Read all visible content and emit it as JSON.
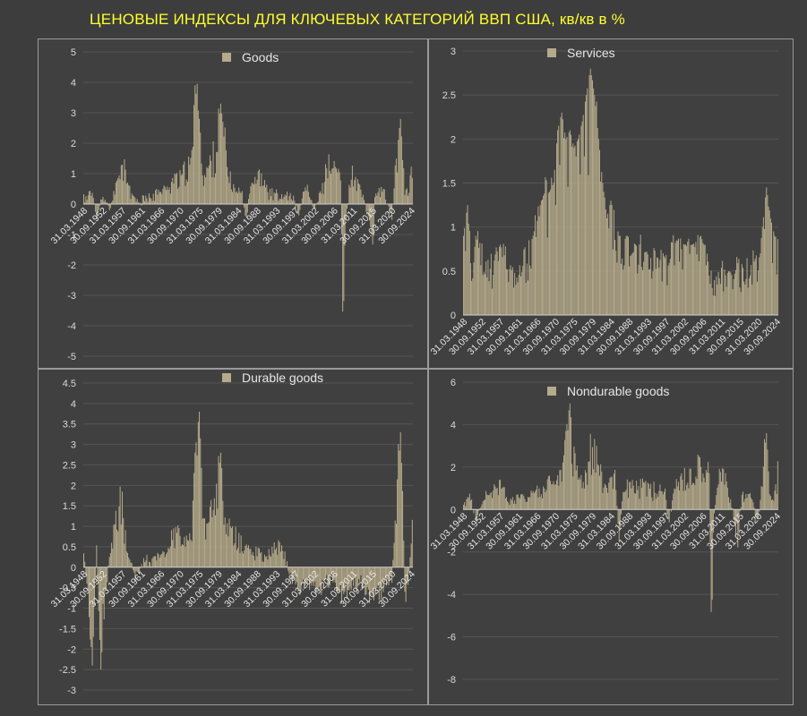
{
  "title": "ЦЕНОВЫЕ ИНДЕКСЫ ДЛЯ КЛЮЧЕВЫХ КАТЕГОРИЙ ВВП США, кв/кв в %",
  "colors": {
    "background": "#3d3d3d",
    "panel": "#404040",
    "bar": "#b5aa8a",
    "title": "#ffff2e",
    "text": "#d9d9d9",
    "border": "#9a9a9a"
  },
  "chart_data": [
    {
      "type": "bar",
      "legend": "Goods",
      "ylim": [
        -5,
        5
      ],
      "yticks": [
        "5",
        "4",
        "3",
        "2",
        "1",
        "0",
        "-1",
        "-2",
        "-3",
        "-4",
        "-5"
      ],
      "xticks": [
        "31.03.1948",
        "30.09.1952",
        "31.03.1957",
        "30.09.1961",
        "31.03.1966",
        "30.09.1970",
        "31.03.1975",
        "30.09.1979",
        "31.03.1984",
        "30.09.1988",
        "31.03.1993",
        "30.09.1997",
        "31.03.2002",
        "30.09.2006",
        "31.03.2011",
        "30.09.2015",
        "31.03.2020",
        "30.09.2024"
      ],
      "x_start": 1948.0,
      "x_end": 2025.0,
      "anchors": [
        [
          1948,
          0.2
        ],
        [
          1950,
          0.4
        ],
        [
          1951,
          -0.6
        ],
        [
          1952,
          0.3
        ],
        [
          1954,
          -0.2
        ],
        [
          1956,
          0.9
        ],
        [
          1957,
          1.5
        ],
        [
          1959,
          0.3
        ],
        [
          1961,
          0.1
        ],
        [
          1963,
          0.2
        ],
        [
          1965,
          0.4
        ],
        [
          1967,
          0.5
        ],
        [
          1969,
          0.9
        ],
        [
          1971,
          1.0
        ],
        [
          1973,
          1.3
        ],
        [
          1974,
          3.9
        ],
        [
          1975,
          2.8
        ],
        [
          1976,
          1.0
        ],
        [
          1977,
          1.2
        ],
        [
          1979,
          2.0
        ],
        [
          1980,
          3.3
        ],
        [
          1981,
          2.0
        ],
        [
          1982,
          0.8
        ],
        [
          1983,
          0.6
        ],
        [
          1985,
          0.4
        ],
        [
          1986,
          -0.7
        ],
        [
          1987,
          0.8
        ],
        [
          1989,
          1.0
        ],
        [
          1991,
          0.5
        ],
        [
          1993,
          0.3
        ],
        [
          1995,
          0.3
        ],
        [
          1997,
          0.2
        ],
        [
          1998,
          -0.4
        ],
        [
          2000,
          0.6
        ],
        [
          2002,
          -0.2
        ],
        [
          2004,
          0.8
        ],
        [
          2005,
          1.4
        ],
        [
          2006,
          1.2
        ],
        [
          2008,
          1.3
        ],
        [
          2008.6,
          -4.5
        ],
        [
          2009,
          -1.0
        ],
        [
          2010,
          0.6
        ],
        [
          2011,
          1.1
        ],
        [
          2013,
          0.3
        ],
        [
          2015,
          -0.8
        ],
        [
          2015.5,
          -2.0
        ],
        [
          2016,
          0.3
        ],
        [
          2018,
          0.5
        ],
        [
          2020,
          -0.5
        ],
        [
          2021,
          1.6
        ],
        [
          2022,
          2.8
        ],
        [
          2023,
          0.5
        ],
        [
          2024,
          0.4
        ],
        [
          2025,
          2.0
        ]
      ]
    },
    {
      "type": "bar",
      "legend": "Services",
      "ylim": [
        0,
        3
      ],
      "yticks": [
        "3",
        "2.5",
        "2",
        "1.5",
        "1",
        "0.5",
        "0"
      ],
      "xticks": [
        "31.03.1948",
        "30.09.1952",
        "31.03.1957",
        "30.09.1961",
        "31.03.1966",
        "30.09.1970",
        "31.03.1975",
        "30.09.1979",
        "31.03.1984",
        "30.09.1988",
        "31.03.1993",
        "30.09.1997",
        "31.03.2002",
        "30.09.2006",
        "31.03.2011",
        "30.09.2015",
        "31.03.2020",
        "30.09.2024"
      ],
      "x_start": 1948.0,
      "x_end": 2025.0,
      "anchors": [
        [
          1948,
          0.9
        ],
        [
          1949,
          1.25
        ],
        [
          1950,
          0.4
        ],
        [
          1951,
          0.9
        ],
        [
          1953,
          0.55
        ],
        [
          1955,
          0.6
        ],
        [
          1957,
          0.8
        ],
        [
          1959,
          0.55
        ],
        [
          1961,
          0.5
        ],
        [
          1963,
          0.6
        ],
        [
          1965,
          0.9
        ],
        [
          1967,
          1.3
        ],
        [
          1969,
          1.4
        ],
        [
          1970,
          1.5
        ],
        [
          1971,
          2.1
        ],
        [
          1972,
          2.3
        ],
        [
          1973,
          2.0
        ],
        [
          1974,
          2.1
        ],
        [
          1975,
          1.9
        ],
        [
          1976,
          2.0
        ],
        [
          1977,
          2.2
        ],
        [
          1978,
          2.5
        ],
        [
          1979,
          2.8
        ],
        [
          1980,
          2.5
        ],
        [
          1981,
          2.0
        ],
        [
          1982,
          1.5
        ],
        [
          1983,
          1.1
        ],
        [
          1984,
          1.3
        ],
        [
          1986,
          0.9
        ],
        [
          1988,
          0.9
        ],
        [
          1990,
          0.8
        ],
        [
          1992,
          0.7
        ],
        [
          1994,
          0.7
        ],
        [
          1996,
          0.6
        ],
        [
          1998,
          0.6
        ],
        [
          2000,
          0.85
        ],
        [
          2002,
          0.8
        ],
        [
          2004,
          0.8
        ],
        [
          2006,
          0.9
        ],
        [
          2007,
          0.75
        ],
        [
          2008,
          0.7
        ],
        [
          2009,
          0.3
        ],
        [
          2010,
          0.45
        ],
        [
          2012,
          0.5
        ],
        [
          2014,
          0.55
        ],
        [
          2016,
          0.5
        ],
        [
          2018,
          0.55
        ],
        [
          2019,
          0.6
        ],
        [
          2020,
          0.5
        ],
        [
          2021,
          1.0
        ],
        [
          2022,
          1.45
        ],
        [
          2023,
          1.1
        ],
        [
          2024,
          0.9
        ],
        [
          2025,
          0.85
        ]
      ]
    },
    {
      "type": "bar",
      "legend": "Durable goods",
      "ylim": [
        -3,
        4.5
      ],
      "yticks": [
        "4.5",
        "4",
        "3.5",
        "3",
        "2.5",
        "2",
        "1.5",
        "1",
        "0.5",
        "0",
        "-0.5",
        "-1",
        "-1.5",
        "-2",
        "-2.5",
        "-3"
      ],
      "xticks": [
        "31.03.1948",
        "30.09.1952",
        "31.03.1957",
        "30.09.1961",
        "31.03.1966",
        "30.09.1970",
        "31.03.1975",
        "30.09.1979",
        "31.03.1984",
        "30.09.1988",
        "31.03.1993",
        "30.09.1997",
        "31.03.2002",
        "30.09.2006",
        "31.03.2011",
        "30.09.2015",
        "31.03.2020",
        "30.09.2024"
      ],
      "x_start": 1948.0,
      "x_end": 2025.0,
      "anchors": [
        [
          1948,
          0.3
        ],
        [
          1949,
          -0.6
        ],
        [
          1950,
          -2.4
        ],
        [
          1951,
          0.4
        ],
        [
          1952,
          -2.5
        ],
        [
          1953,
          -0.8
        ],
        [
          1954,
          0.3
        ],
        [
          1955,
          1.0
        ],
        [
          1956,
          1.4
        ],
        [
          1957,
          1.6
        ],
        [
          1958,
          0.5
        ],
        [
          1960,
          -0.3
        ],
        [
          1962,
          0.2
        ],
        [
          1964,
          0.2
        ],
        [
          1966,
          0.3
        ],
        [
          1968,
          0.6
        ],
        [
          1970,
          1.0
        ],
        [
          1972,
          0.6
        ],
        [
          1973,
          0.8
        ],
        [
          1974,
          2.8
        ],
        [
          1975,
          3.8
        ],
        [
          1976,
          1.2
        ],
        [
          1977,
          1.0
        ],
        [
          1978,
          1.5
        ],
        [
          1979,
          1.8
        ],
        [
          1980,
          2.8
        ],
        [
          1981,
          1.3
        ],
        [
          1982,
          0.9
        ],
        [
          1983,
          0.8
        ],
        [
          1985,
          0.6
        ],
        [
          1987,
          0.5
        ],
        [
          1989,
          0.4
        ],
        [
          1991,
          0.3
        ],
        [
          1993,
          0.5
        ],
        [
          1995,
          0.4
        ],
        [
          1996,
          -0.3
        ],
        [
          1998,
          -0.5
        ],
        [
          2000,
          -0.4
        ],
        [
          2002,
          -0.6
        ],
        [
          2004,
          -0.5
        ],
        [
          2006,
          -0.3
        ],
        [
          2008,
          -0.8
        ],
        [
          2010,
          -0.6
        ],
        [
          2012,
          -0.4
        ],
        [
          2014,
          -0.6
        ],
        [
          2016,
          -0.8
        ],
        [
          2018,
          -0.6
        ],
        [
          2020,
          -0.3
        ],
        [
          2021,
          1.5
        ],
        [
          2022,
          3.3
        ],
        [
          2022.6,
          1.5
        ],
        [
          2023,
          -0.8
        ],
        [
          2024,
          -0.3
        ],
        [
          2025,
          1.6
        ]
      ]
    },
    {
      "type": "bar",
      "legend": "Nondurable goods",
      "ylim": [
        -8,
        6
      ],
      "yticks": [
        "6",
        "4",
        "2",
        "0",
        "-2",
        "-4",
        "-6",
        "-8"
      ],
      "xticks": [
        "31.03.1948",
        "30.09.1952",
        "31.03.1957",
        "30.09.1961",
        "31.03.1966",
        "30.09.1970",
        "31.03.1975",
        "30.09.1979",
        "31.03.1984",
        "30.09.1988",
        "31.03.1993",
        "30.09.1997",
        "31.03.2002",
        "30.09.2006",
        "31.03.2011",
        "30.09.2015",
        "31.03.2020",
        "30.09.2024"
      ],
      "x_start": 1948.0,
      "x_end": 2025.0,
      "anchors": [
        [
          1948,
          0.4
        ],
        [
          1950,
          0.5
        ],
        [
          1951,
          -0.5
        ],
        [
          1953,
          0.5
        ],
        [
          1955,
          0.8
        ],
        [
          1957,
          1.3
        ],
        [
          1959,
          0.5
        ],
        [
          1961,
          0.5
        ],
        [
          1963,
          0.6
        ],
        [
          1965,
          0.8
        ],
        [
          1967,
          1.1
        ],
        [
          1969,
          1.5
        ],
        [
          1971,
          1.4
        ],
        [
          1972,
          2.0
        ],
        [
          1973,
          3.7
        ],
        [
          1974,
          5.0
        ],
        [
          1975,
          2.4
        ],
        [
          1976,
          1.6
        ],
        [
          1977,
          1.6
        ],
        [
          1978,
          2.0
        ],
        [
          1979,
          3.0
        ],
        [
          1980,
          3.5
        ],
        [
          1981,
          2.4
        ],
        [
          1982,
          1.2
        ],
        [
          1983,
          1.2
        ],
        [
          1985,
          1.5
        ],
        [
          1986,
          -1.5
        ],
        [
          1987,
          1.0
        ],
        [
          1989,
          1.3
        ],
        [
          1991,
          1.0
        ],
        [
          1993,
          1.3
        ],
        [
          1995,
          0.8
        ],
        [
          1997,
          1.3
        ],
        [
          1998,
          -0.8
        ],
        [
          2000,
          1.3
        ],
        [
          2002,
          1.7
        ],
        [
          2004,
          1.8
        ],
        [
          2005,
          2.2
        ],
        [
          2006,
          2.5
        ],
        [
          2007,
          1.8
        ],
        [
          2008,
          2.0
        ],
        [
          2008.6,
          -6.2
        ],
        [
          2009,
          -1.0
        ],
        [
          2010,
          1.8
        ],
        [
          2011,
          2.2
        ],
        [
          2013,
          0.8
        ],
        [
          2015,
          -1.5
        ],
        [
          2016,
          0.8
        ],
        [
          2018,
          0.8
        ],
        [
          2020,
          -0.8
        ],
        [
          2021,
          1.8
        ],
        [
          2022,
          3.6
        ],
        [
          2023,
          0.5
        ],
        [
          2024,
          0.8
        ],
        [
          2025,
          2.4
        ]
      ]
    }
  ]
}
